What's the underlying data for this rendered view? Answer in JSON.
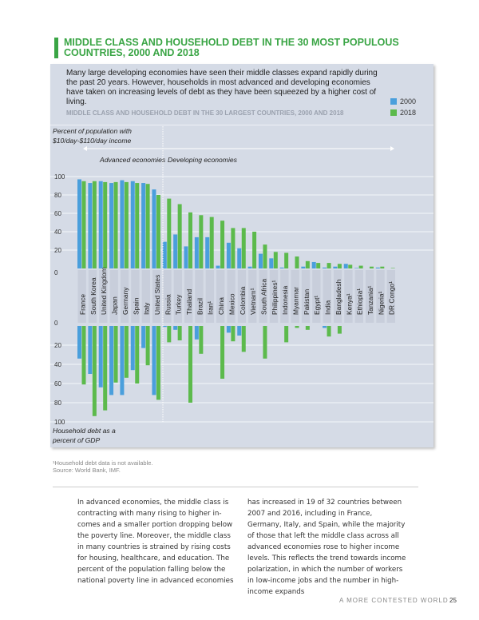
{
  "title": "MIDDLE CLASS AND HOUSEHOLD DEBT IN THE 30 MOST POPULOUS COUNTRIES, 2000 AND 2018",
  "intro": "Many large developing economies have seen their middle classes expand rapidly during the past 20 years. However, households in most advanced and developing economies have taken on increasing levels of debt as they have been squeezed by a higher cost of living.",
  "footnote": "¹Household debt data is not available.",
  "source": "Source: World Bank, IMF.",
  "body_left": "In advanced economies, the middle class is contracting with many rising to higher in-comes and a smaller portion dropping below the poverty line. Moreover, the middle class in many countries is strained by rising costs for housing, healthcare, and education. The percent of the population falling below the national poverty line in advanced economies",
  "body_right": "has increased in 19 of 32 countries between 2007 and 2016, including in France, Germany, Italy, and Spain, while the majority of those that left the middle class across all advanced economies rose to higher income levels. This reflects the trend towards income polarization, in which the number of workers in low-income jobs and the number in high-income expands",
  "footer": "A MORE CONTESTED WORLD",
  "page_number": "25",
  "colors": {
    "2000": "#4a9fdc",
    "2018": "#5cba4c",
    "title": "#3aa545",
    "panel": "#d5dbe6"
  },
  "chart_data": {
    "type": "bar",
    "title": "MIDDLE CLASS AND HOUSEHOLD DEBT IN THE 30 LARGEST COUNTRIES, 2000 AND 2018",
    "legend": [
      "2000",
      "2018"
    ],
    "legend_position": "top-right",
    "group_labels": [
      "Advanced economies",
      "Developing economies"
    ],
    "categories": [
      "France",
      "South Korea",
      "United Kingdom",
      "Japan",
      "Germany",
      "Spain",
      "Italy",
      "United States",
      "Russia",
      "Turkey",
      "Thailand",
      "Brazil",
      "Iran¹",
      "China",
      "Mexico",
      "Colombia",
      "Vietnam¹",
      "South Africa",
      "Philippines¹",
      "Indonesia",
      "Myanmar",
      "Pakistan",
      "Egypt¹",
      "India",
      "Bangladesh",
      "Kenya¹",
      "Ethiopia¹",
      "Tanzania¹",
      "Nigeria¹",
      "DR Congo¹"
    ],
    "panels": [
      {
        "ylabel": "Percent of population with $10/day-$110/day income",
        "ylim": [
          0,
          100
        ],
        "yticks": [
          0,
          20,
          40,
          60,
          80,
          100
        ],
        "grid": true,
        "series": [
          {
            "name": "2000",
            "values": [
              97,
              93,
              95,
              93,
              96,
              95,
              93,
              86,
              29,
              37,
              24,
              34,
              34,
              3,
              28,
              22,
              2,
              16,
              11,
              1,
              0,
              2,
              7,
              1,
              2,
              5,
              0.5,
              0,
              1,
              0
            ]
          },
          {
            "name": "2018",
            "values": [
              95,
              95,
              94,
              94,
              94,
              93,
              92,
              80,
              76,
              70,
              61,
              58,
              56,
              52,
              44,
              44,
              40,
              26,
              18,
              17,
              13,
              8,
              6,
              6,
              5,
              4,
              3,
              2,
              2,
              0.5
            ]
          }
        ]
      },
      {
        "ylabel": "Household debt as a percent of GDP",
        "ylim": [
          0,
          100
        ],
        "yticks": [
          0,
          20,
          40,
          60,
          80,
          100
        ],
        "grid": true,
        "direction": "downward",
        "series": [
          {
            "name": "2000",
            "values": [
              34,
              50,
              64,
              72,
              72,
              46,
              23,
              72,
              1,
              4,
              0,
              14,
              0,
              0,
              7,
              10,
              0,
              0,
              0,
              0,
              0,
              0,
              0,
              2,
              0,
              0,
              0,
              0,
              0,
              0
            ]
          },
          {
            "name": "2018",
            "values": [
              61,
              94,
              88,
              59,
              54,
              60,
              41,
              77,
              17,
              15,
              80,
              29,
              0,
              55,
              16,
              27,
              0,
              34,
              0,
              17,
              2,
              4,
              0,
              11,
              8,
              0,
              0,
              0,
              0,
              0
            ]
          }
        ]
      }
    ]
  }
}
